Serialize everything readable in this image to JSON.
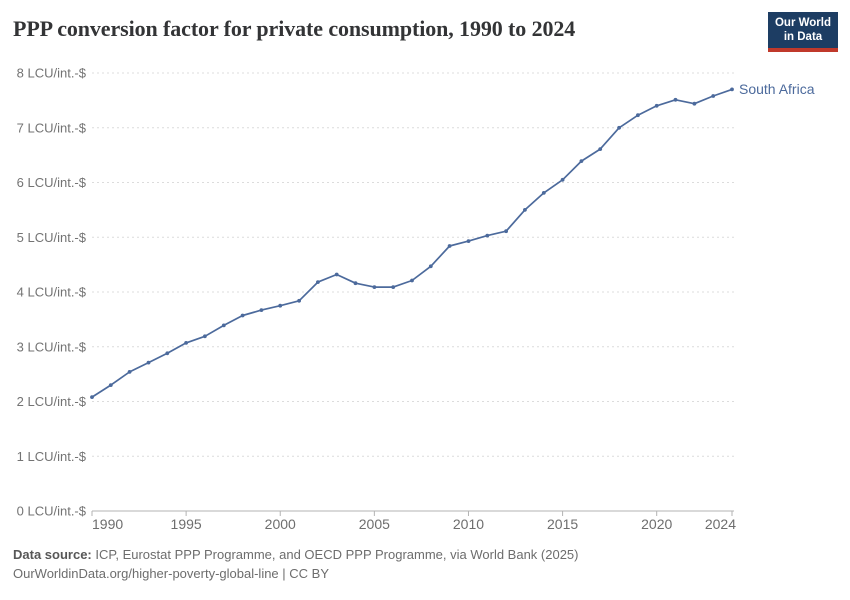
{
  "header": {
    "title": "PPP conversion factor for private consumption, 1990 to 2024",
    "logo": {
      "line1": "Our World",
      "line2": "in Data"
    }
  },
  "chart_data": {
    "type": "line",
    "title": "PPP conversion factor for private consumption, 1990 to 2024",
    "unit": "LCU/int.-$",
    "x": [
      1990,
      1991,
      1992,
      1993,
      1994,
      1995,
      1996,
      1997,
      1998,
      1999,
      2000,
      2001,
      2002,
      2003,
      2004,
      2005,
      2006,
      2007,
      2008,
      2009,
      2010,
      2011,
      2012,
      2013,
      2014,
      2015,
      2016,
      2017,
      2018,
      2019,
      2020,
      2021,
      2022,
      2023,
      2024
    ],
    "series": [
      {
        "name": "South Africa",
        "color": "#4c6a9c",
        "values": [
          2.08,
          2.3,
          2.54,
          2.71,
          2.88,
          3.07,
          3.19,
          3.39,
          3.57,
          3.67,
          3.75,
          3.84,
          4.18,
          4.32,
          4.16,
          4.09,
          4.09,
          4.21,
          4.47,
          4.84,
          4.93,
          5.03,
          5.11,
          5.5,
          5.81,
          6.05,
          6.39,
          6.61,
          7.0,
          7.23,
          7.4,
          7.51,
          7.44,
          7.58,
          7.7
        ]
      }
    ],
    "xlim": [
      1990,
      2024
    ],
    "ylim": [
      0,
      8
    ],
    "grid": true,
    "x_ticks": [
      1990,
      1995,
      2000,
      2005,
      2010,
      2015,
      2020,
      2024
    ],
    "y_ticks": [
      0,
      1,
      2,
      3,
      4,
      5,
      6,
      7,
      8
    ],
    "y_tick_label_format": "{v} LCU/int.-$",
    "legend_position": "end-of-line-label"
  },
  "footer": {
    "datasource_label": "Data source:",
    "datasource_text": " ICP, Eurostat PPP Programme, and OECD PPP Programme, via World Bank (2025)",
    "license_link": "OurWorldinData.org/higher-poverty-global-line",
    "license_suffix": " | CC BY"
  },
  "colors": {
    "accent_line": "#4c6a9c",
    "logo_bg": "#1d3d63",
    "logo_bar": "#c0392b",
    "grid": "#dcdcdc",
    "axis": "#b3b3b3",
    "tick_text": "#737373",
    "x_tick_text": "#6e6e6e"
  }
}
